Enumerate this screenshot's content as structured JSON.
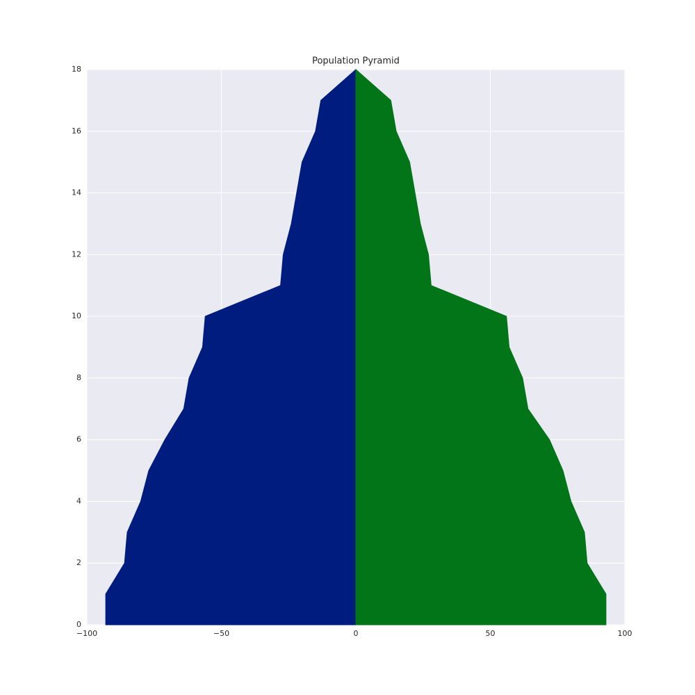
{
  "chart_data": {
    "type": "area",
    "orientation": "horizontal",
    "title": "Population Pyramid",
    "y": [
      0,
      1,
      2,
      3,
      4,
      5,
      6,
      7,
      8,
      9,
      10,
      11,
      12,
      13,
      14,
      15,
      16,
      17,
      18
    ],
    "series": [
      {
        "color": "#001c7f",
        "values": [
          -93,
          -93,
          -86,
          -85,
          -80,
          -77,
          -71,
          -64,
          -62,
          -57,
          -56,
          -28,
          -27,
          -24,
          -22,
          -20,
          -15,
          -13,
          0
        ]
      },
      {
        "color": "#017517",
        "values": [
          93,
          93,
          86,
          85,
          80,
          77,
          72,
          64,
          62,
          57,
          56,
          28,
          27,
          24,
          22,
          20,
          15,
          13,
          0
        ]
      }
    ],
    "xlim": [
      -100,
      100
    ],
    "xticks": [
      {
        "value": -100,
        "label": "−100"
      },
      {
        "value": -50,
        "label": "−50"
      },
      0,
      50,
      100
    ],
    "ylim": [
      0,
      18
    ],
    "yticks": [
      0,
      2,
      4,
      6,
      8,
      10,
      12,
      14,
      16,
      18
    ],
    "grid": true,
    "background": "#eaeaf2"
  }
}
